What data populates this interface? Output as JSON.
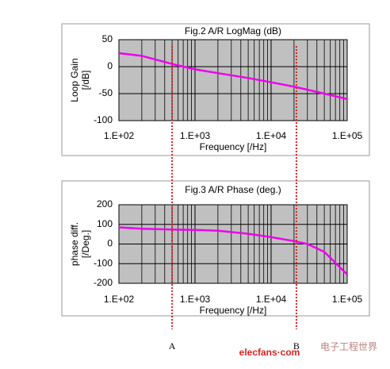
{
  "chart_data": [
    {
      "type": "line",
      "title": "Fig.2 A/R LogMag (dB)",
      "xlabel": "Frequency [/Hz]",
      "ylabel": [
        "Loop Gain",
        "[/dB]"
      ],
      "x": [
        100,
        200,
        500,
        1000,
        2000,
        5000,
        10000,
        20000,
        50000,
        100000
      ],
      "series": [
        {
          "color": "#ee00ee",
          "values": [
            25,
            20,
            5,
            -5,
            -12,
            -21,
            -29,
            -37,
            -50,
            -60
          ]
        }
      ],
      "xlim": [
        100,
        100000
      ],
      "ylim": [
        -100,
        50
      ],
      "log_x": true,
      "grid": true,
      "minor_grid": true,
      "background": "#c0c0c0",
      "xticks": [
        {
          "value": 100,
          "label": "1.E+02"
        },
        {
          "value": 1000,
          "label": "1.E+03"
        },
        {
          "value": 10000,
          "label": "1.E+04"
        },
        {
          "value": 100000,
          "label": "1.E+05"
        }
      ],
      "yticks": [
        50,
        0,
        -50,
        -100
      ]
    },
    {
      "type": "line",
      "title": "Fig.3 A/R Phase (deg.)",
      "xlabel": "Frequency [/Hz]",
      "ylabel": [
        "phase diff.",
        "[/Deg.]"
      ],
      "x": [
        100,
        200,
        500,
        1000,
        2000,
        5000,
        10000,
        20000,
        30000,
        50000,
        100000
      ],
      "series": [
        {
          "color": "#ee00ee",
          "values": [
            85,
            78,
            74,
            72,
            68,
            52,
            35,
            15,
            0,
            -40,
            -155
          ]
        }
      ],
      "xlim": [
        100,
        100000
      ],
      "ylim": [
        -200,
        200
      ],
      "log_x": true,
      "grid": true,
      "minor_grid": true,
      "background": "#c0c0c0",
      "xticks": [
        {
          "value": 100,
          "label": "1.E+02"
        },
        {
          "value": 1000,
          "label": "1.E+03"
        },
        {
          "value": 10000,
          "label": "1.E+04"
        },
        {
          "value": 100000,
          "label": "1.E+05"
        }
      ],
      "yticks": [
        200,
        100,
        0,
        -100,
        -200
      ]
    }
  ],
  "markers": [
    {
      "label": "A",
      "x": 500,
      "color": "#dd2222"
    },
    {
      "label": "B",
      "x": 21500,
      "color": "#dd2222"
    }
  ],
  "watermark": {
    "text": "elecfans·com",
    "sub": "电子工程世界"
  }
}
